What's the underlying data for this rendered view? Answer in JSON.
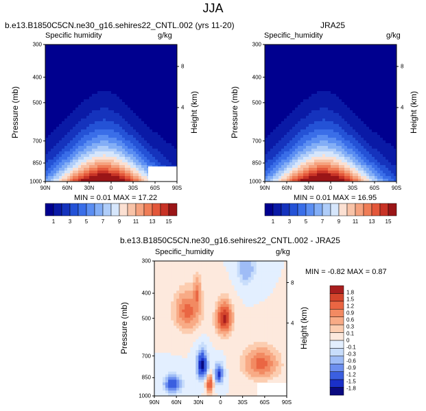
{
  "season": "JJA",
  "colors": {
    "left_scale": [
      "#00008f",
      "#0a1aa6",
      "#1533bd",
      "#2452d6",
      "#3a6ee8",
      "#5b8ef2",
      "#83aef6",
      "#afcdf9",
      "#d6e6fb",
      "#fbe0d2",
      "#f8c3a8",
      "#f5a27f",
      "#ef7d57",
      "#e3573a",
      "#c83326",
      "#9a1517"
    ],
    "diff_scale": [
      "#0a0a80",
      "#1a30c8",
      "#3b5fe0",
      "#6d8fef",
      "#9fbcf6",
      "#c8ddfb",
      "#e3efff",
      "#fde9dd",
      "#fccdb0",
      "#f8ab86",
      "#f28a62",
      "#ea6643",
      "#d4452c",
      "#a81e1e"
    ]
  },
  "panels": [
    {
      "key": "model",
      "title": "b.e13.B1850C5CN.ne30_g16.sehires22_CNTL.002 (yrs 11-20)",
      "subtitle_left": "Specific humidity",
      "units": "g/kg",
      "ylabel": "Pressure (mb)",
      "ylabel_right": "Height (km)",
      "min_max": "MIN =  0.01   MAX =  17.22",
      "chart_data": {
        "type": "heatmap",
        "x_ticks": [
          "90N",
          "60N",
          "30N",
          "0",
          "30S",
          "60S",
          "90S"
        ],
        "y_ticks": [
          "300",
          "400",
          "500",
          "700",
          "850",
          "1000"
        ],
        "y_ticks_right": [
          "8",
          "4"
        ],
        "min": 0.01,
        "max": 17.22,
        "peak_lat": 10,
        "colorbar_labels": [
          "1",
          "3",
          "5",
          "7",
          "9",
          "11",
          "13",
          "15"
        ]
      }
    },
    {
      "key": "obs",
      "title": "JRA25",
      "subtitle_left": "Specific_humidity",
      "units": "g/kg",
      "ylabel": "Pressure (mb)",
      "ylabel_right": "Height (km)",
      "min_max": "MIN =  0.01   MAX =  16.95",
      "chart_data": {
        "type": "heatmap",
        "x_ticks": [
          "90N",
          "60N",
          "30N",
          "0",
          "30S",
          "60S",
          "90S"
        ],
        "y_ticks": [
          "300",
          "400",
          "500",
          "700",
          "850",
          "1000"
        ],
        "y_ticks_right": [
          "8",
          "4"
        ],
        "min": 0.01,
        "max": 16.95,
        "peak_lat": 10,
        "colorbar_labels": [
          "1",
          "3",
          "5",
          "7",
          "9",
          "11",
          "13",
          "15"
        ]
      }
    },
    {
      "key": "diff",
      "title": "b.e13.B1850C5CN.ne30_g16.sehires22_CNTL.002 - JRA25",
      "subtitle_left": "Specific_humidity",
      "units": "g/kg",
      "ylabel": "Pressure (mb)",
      "ylabel_right": "Height (km)",
      "min_max": "MIN = -0.82  MAX =  0.87",
      "chart_data": {
        "type": "heatmap",
        "x_ticks": [
          "90N",
          "60N",
          "30N",
          "0",
          "30S",
          "60S",
          "90S"
        ],
        "y_ticks": [
          "300",
          "400",
          "500",
          "700",
          "850",
          "1000"
        ],
        "y_ticks_right": [
          "8",
          "4"
        ],
        "min": -0.82,
        "max": 0.87,
        "colorbar_labels": [
          "1.8",
          "1.5",
          "1.2",
          "0.9",
          "0.6",
          "0.3",
          "0.1",
          "0",
          "-0.1",
          "-0.3",
          "-0.6",
          "-0.9",
          "-1.2",
          "-1.5",
          "-1.8"
        ]
      }
    }
  ]
}
